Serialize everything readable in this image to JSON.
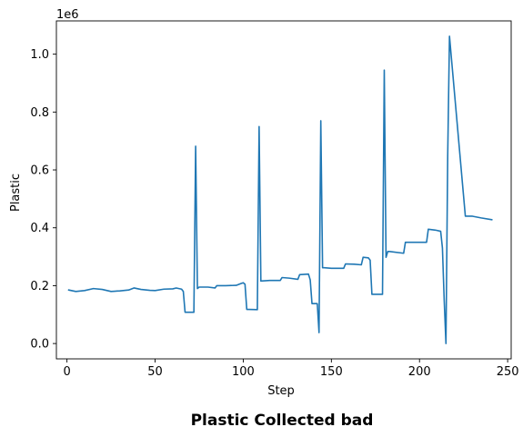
{
  "chart_data": {
    "type": "line",
    "title": "Plastic Collected bad",
    "xlabel": "Step",
    "ylabel": "Plastic",
    "offset_label": "1e6",
    "xlim": [
      -6,
      252
    ],
    "ylim": [
      -0.053,
      1.115
    ],
    "y_scale_factor": 1000000,
    "grid": false,
    "legend": "none",
    "x_ticks": [
      0,
      50,
      100,
      150,
      200,
      250
    ],
    "x_tick_labels": [
      "0",
      "50",
      "100",
      "150",
      "200",
      "250"
    ],
    "y_ticks": [
      0.0,
      0.2,
      0.4,
      0.6,
      0.8,
      1.0
    ],
    "y_tick_labels": [
      "0.0",
      "0.2",
      "0.4",
      "0.6",
      "0.8",
      "1.0"
    ],
    "line_color": "#1f77b4",
    "series": [
      {
        "x": [
          1,
          5,
          10,
          15,
          20,
          25,
          30,
          35,
          38,
          42,
          47,
          50,
          55,
          60,
          62,
          65,
          66,
          67,
          72,
          73,
          74,
          75,
          80,
          84,
          85,
          90,
          96,
          99,
          100,
          101,
          102,
          103,
          108,
          109,
          110,
          115,
          121,
          122,
          126,
          131,
          132,
          137,
          138,
          139,
          142,
          143,
          144,
          145,
          146,
          150,
          157,
          158,
          163,
          167,
          168,
          171,
          172,
          173,
          178,
          179,
          180,
          181,
          182,
          183,
          191,
          192,
          198,
          204,
          205,
          209,
          212,
          213,
          214,
          215,
          216,
          217,
          226,
          230,
          235,
          241
        ],
        "y": [
          0.185,
          0.18,
          0.183,
          0.19,
          0.187,
          0.18,
          0.182,
          0.185,
          0.192,
          0.187,
          0.184,
          0.183,
          0.188,
          0.189,
          0.192,
          0.188,
          0.18,
          0.108,
          0.108,
          0.682,
          0.19,
          0.195,
          0.195,
          0.192,
          0.2,
          0.2,
          0.201,
          0.208,
          0.21,
          0.205,
          0.118,
          0.118,
          0.117,
          0.75,
          0.216,
          0.218,
          0.218,
          0.228,
          0.226,
          0.222,
          0.238,
          0.24,
          0.22,
          0.138,
          0.138,
          0.038,
          0.77,
          0.262,
          0.262,
          0.26,
          0.26,
          0.275,
          0.274,
          0.272,
          0.298,
          0.296,
          0.288,
          0.17,
          0.17,
          0.17,
          0.945,
          0.298,
          0.318,
          0.318,
          0.312,
          0.35,
          0.35,
          0.35,
          0.395,
          0.392,
          0.388,
          0.33,
          0.15,
          0.0,
          0.65,
          1.062,
          0.44,
          0.44,
          0.434,
          0.428
        ]
      }
    ]
  }
}
